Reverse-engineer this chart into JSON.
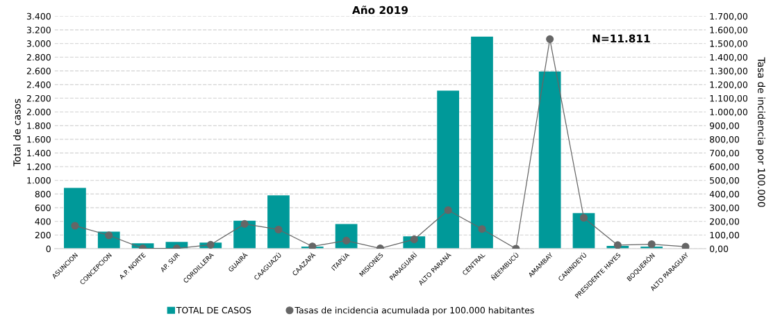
{
  "chart_data": {
    "type": "bar",
    "title": "Año 2019",
    "ylabel": "Total de casos",
    "y2label": "Tasa de incidencia por 100.000",
    "categories": [
      "ASUNCION",
      "CONCEPCION",
      "A.P. NORTE",
      "AP. SUR",
      "CORDILLERA",
      "GUAIRÁ",
      "CAAGUAZÚ",
      "CAAZAPÁ",
      "ITAPÚA",
      "MISIONES",
      "PARAGUARÍ",
      "ALTO PARANÁ",
      "CENTRAL",
      "ÑEEMBUCÚ",
      "AMAMBAY",
      "CANINDEYÚ",
      "PRESIDENTE HAYES",
      "BOQUERÓN",
      "ALTO PARAGUAY"
    ],
    "series": [
      {
        "name": "TOTAL DE CASOS",
        "color": "#009999",
        "values": [
          890,
          250,
          80,
          100,
          90,
          410,
          780,
          30,
          360,
          0,
          180,
          2310,
          3100,
          0,
          2590,
          520,
          40,
          30,
          0
        ]
      },
      {
        "name": "Tasas de incidencia acumulada por 100.000 habitantes",
        "type": "line",
        "axis": "y2",
        "color": "#666666",
        "marker": "circle",
        "values": [
          168,
          98,
          2,
          2,
          29,
          181,
          140,
          17,
          59,
          2,
          68,
          282,
          144,
          0,
          1532,
          226,
          26,
          33,
          15
        ]
      }
    ],
    "ylim": [
      0,
      3400
    ],
    "yticks": [
      {
        "value": 0,
        "label": "0"
      },
      {
        "value": 200,
        "label": "200"
      },
      {
        "value": 400,
        "label": "400"
      },
      {
        "value": 600,
        "label": "600"
      },
      {
        "value": 800,
        "label": "800"
      },
      {
        "value": 1000,
        "label": "1.000"
      },
      {
        "value": 1200,
        "label": "1.200"
      },
      {
        "value": 1400,
        "label": "1.400"
      },
      {
        "value": 1600,
        "label": "1.600"
      },
      {
        "value": 1800,
        "label": "1.800"
      },
      {
        "value": 2000,
        "label": "2.000"
      },
      {
        "value": 2200,
        "label": "2.200"
      },
      {
        "value": 2400,
        "label": "2.400"
      },
      {
        "value": 2600,
        "label": "2.600"
      },
      {
        "value": 2800,
        "label": "2.800"
      },
      {
        "value": 3000,
        "label": "3.000"
      },
      {
        "value": 3200,
        "label": "3.200"
      },
      {
        "value": 3400,
        "label": "3.400"
      }
    ],
    "y2lim": [
      0,
      1700
    ],
    "y2ticks": [
      {
        "value": 0,
        "label": "0,00"
      },
      {
        "value": 100,
        "label": "100,00"
      },
      {
        "value": 200,
        "label": "200,00"
      },
      {
        "value": 300,
        "label": "300,00"
      },
      {
        "value": 400,
        "label": "400,00"
      },
      {
        "value": 500,
        "label": "500,00"
      },
      {
        "value": 600,
        "label": "600,00"
      },
      {
        "value": 700,
        "label": "700,00"
      },
      {
        "value": 800,
        "label": "800,00"
      },
      {
        "value": 900,
        "label": "900,00"
      },
      {
        "value": 1000,
        "label": "1.000,00"
      },
      {
        "value": 1100,
        "label": "1.100,00"
      },
      {
        "value": 1200,
        "label": "1.200,00"
      },
      {
        "value": 1300,
        "label": "1.300,00"
      },
      {
        "value": 1400,
        "label": "1.400,00"
      },
      {
        "value": 1500,
        "label": "1.500,00"
      },
      {
        "value": 1600,
        "label": "1.600,00"
      },
      {
        "value": 1700,
        "label": "1.700,00"
      }
    ],
    "grid": "y",
    "legend": "bottom",
    "annotations": [
      "N=11.811"
    ]
  }
}
